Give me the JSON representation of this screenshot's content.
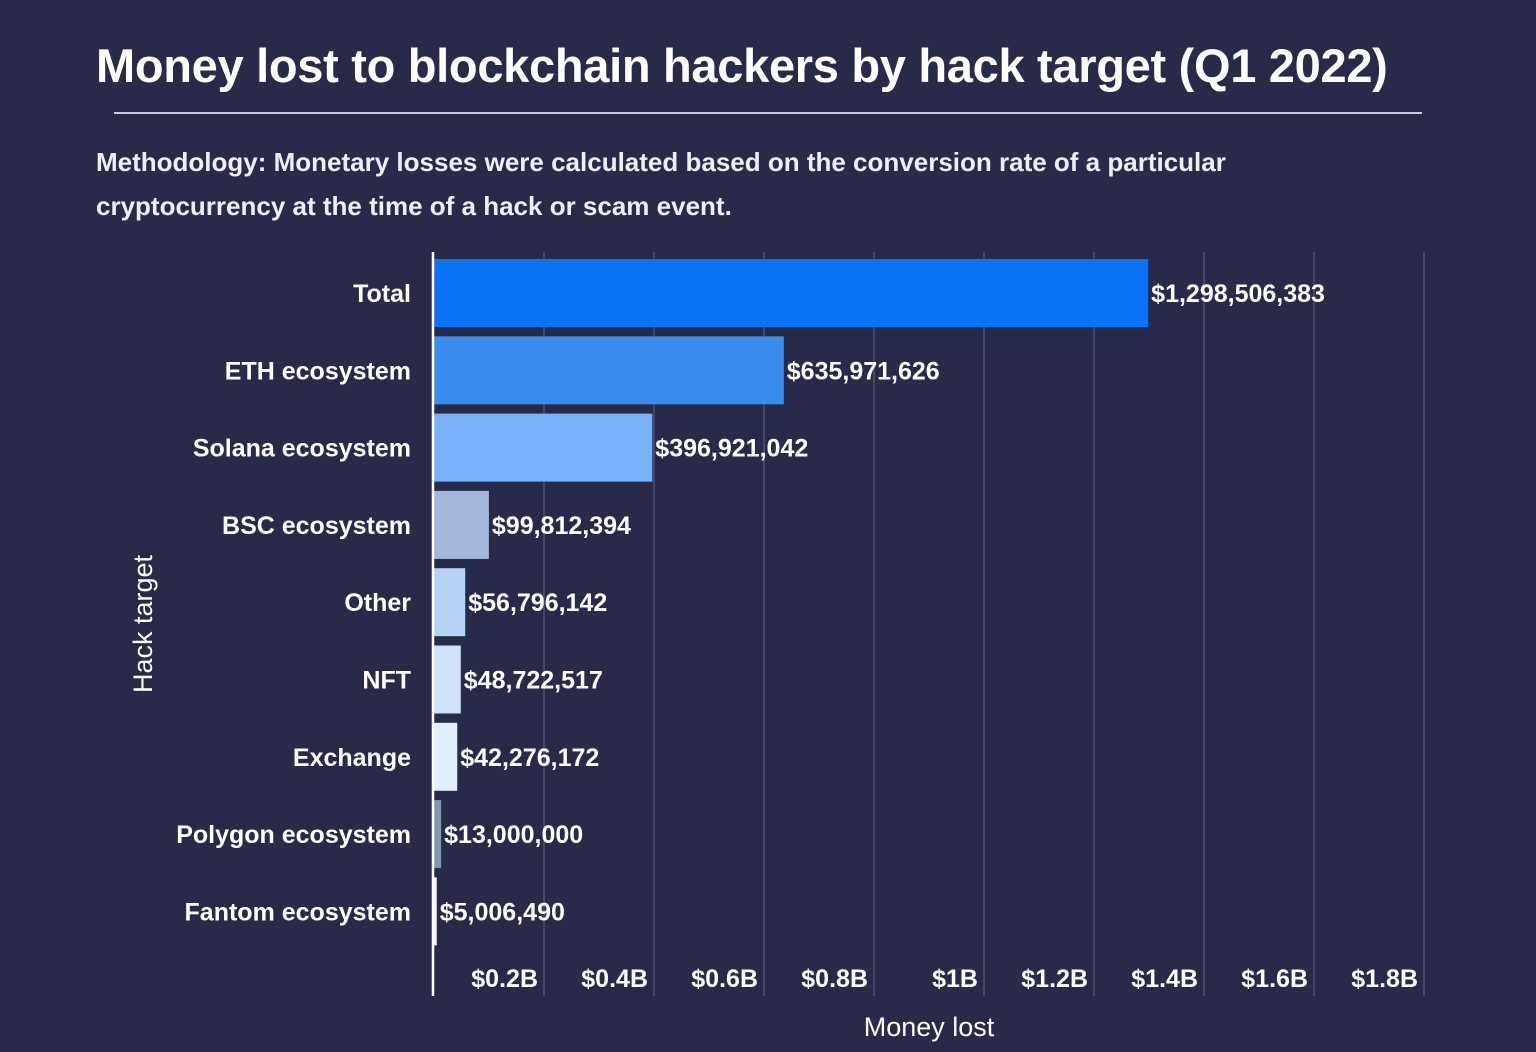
{
  "header": {
    "title": "Money lost to blockchain hackers by hack target (Q1 2022)",
    "subtitle": "Methodology: Monetary losses were calculated based on the conversion rate of a particular cryptocurrency at the time of a hack or scam event."
  },
  "chart_data": {
    "type": "bar",
    "orientation": "horizontal",
    "title": "Money lost to blockchain hackers by hack target (Q1 2022)",
    "subtitle": "Methodology: Monetary losses were calculated based on the conversion rate of a particular cryptocurrency at the time of a hack or scam event.",
    "xlabel": "Money lost",
    "ylabel": "Hack target",
    "xlim": [
      0,
      1800000000
    ],
    "grid": true,
    "categories": [
      "Total",
      "ETH ecosystem",
      "Solana ecosystem",
      "BSC ecosystem",
      "Other",
      "NFT",
      "Exchange",
      "Polygon ecosystem",
      "Fantom ecosystem"
    ],
    "values": [
      1298506383,
      635971626,
      396921042,
      99812394,
      56796142,
      48722517,
      42276172,
      13000000,
      5006490
    ],
    "value_labels": [
      "$1,298,506,383",
      "$635,971,626",
      "$396,921,042",
      "$99,812,394",
      "$56,796,142",
      "$48,722,517",
      "$42,276,172",
      "$13,000,000",
      "$5,006,490"
    ],
    "bar_colors": [
      "#0a72f5",
      "#3a8ded",
      "#78b3fa",
      "#a3b8dc",
      "#b4d2f6",
      "#cde2fa",
      "#e2eefc",
      "#7f98ae",
      "#f1f5fb"
    ],
    "ticks": [
      200000000,
      400000000,
      600000000,
      800000000,
      1000000000,
      1200000000,
      1400000000,
      1600000000,
      1800000000
    ],
    "tick_labels": [
      "$0.2B",
      "$0.4B",
      "$0.6B",
      "$0.8B",
      "$1B",
      "$1.2B",
      "$1.4B",
      "$1.6B",
      "$1.8B"
    ],
    "colors": {
      "background": "#272a49",
      "gridline": "#4e5173",
      "axis": "#ffffff",
      "text": "#ffffff"
    }
  }
}
